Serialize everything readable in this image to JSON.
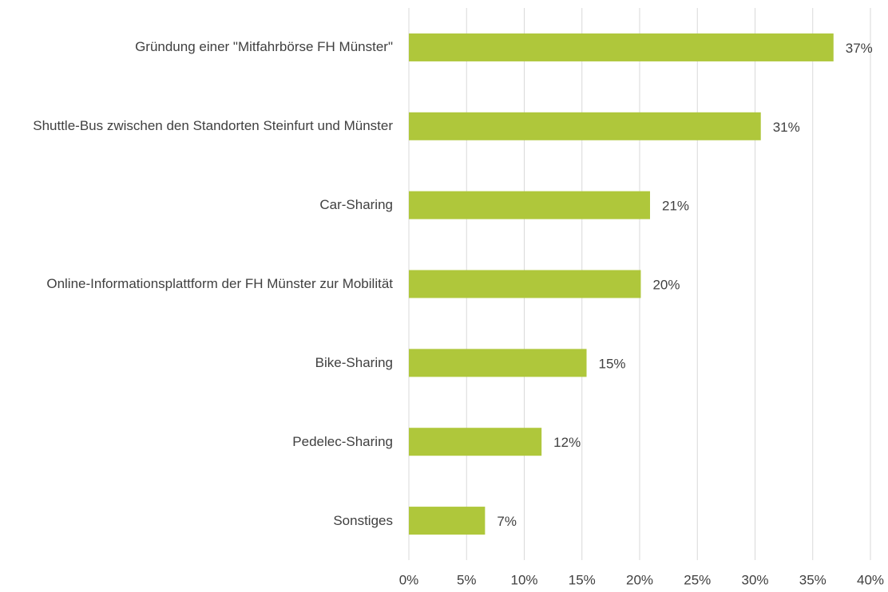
{
  "chart_data": {
    "type": "bar",
    "orientation": "horizontal",
    "categories": [
      "Gründung einer \"Mitfahrbörse FH Münster\"",
      "Shuttle-Bus zwischen den Standorten Steinfurt und Münster",
      "Car-Sharing",
      "Online-Informationsplattform der FH Münster zur Mobilität",
      "Bike-Sharing",
      "Pedelec-Sharing",
      "Sonstiges"
    ],
    "values": [
      36.8,
      30.5,
      20.9,
      20.1,
      15.4,
      11.5,
      6.6
    ],
    "value_labels": [
      "37%",
      "31%",
      "21%",
      "20%",
      "15%",
      "12%",
      "7%"
    ],
    "color": "#afc73b",
    "xlim": [
      0,
      40
    ],
    "xticks": [
      {
        "value": 0,
        "label": "0%"
      },
      {
        "value": 5,
        "label": "5%"
      },
      {
        "value": 10,
        "label": "10%"
      },
      {
        "value": 15,
        "label": "15%"
      },
      {
        "value": 20,
        "label": "20%"
      },
      {
        "value": 25,
        "label": "25%"
      },
      {
        "value": 30,
        "label": "30%"
      },
      {
        "value": 35,
        "label": "35%"
      },
      {
        "value": 40,
        "label": "40%"
      }
    ],
    "grid": true
  }
}
